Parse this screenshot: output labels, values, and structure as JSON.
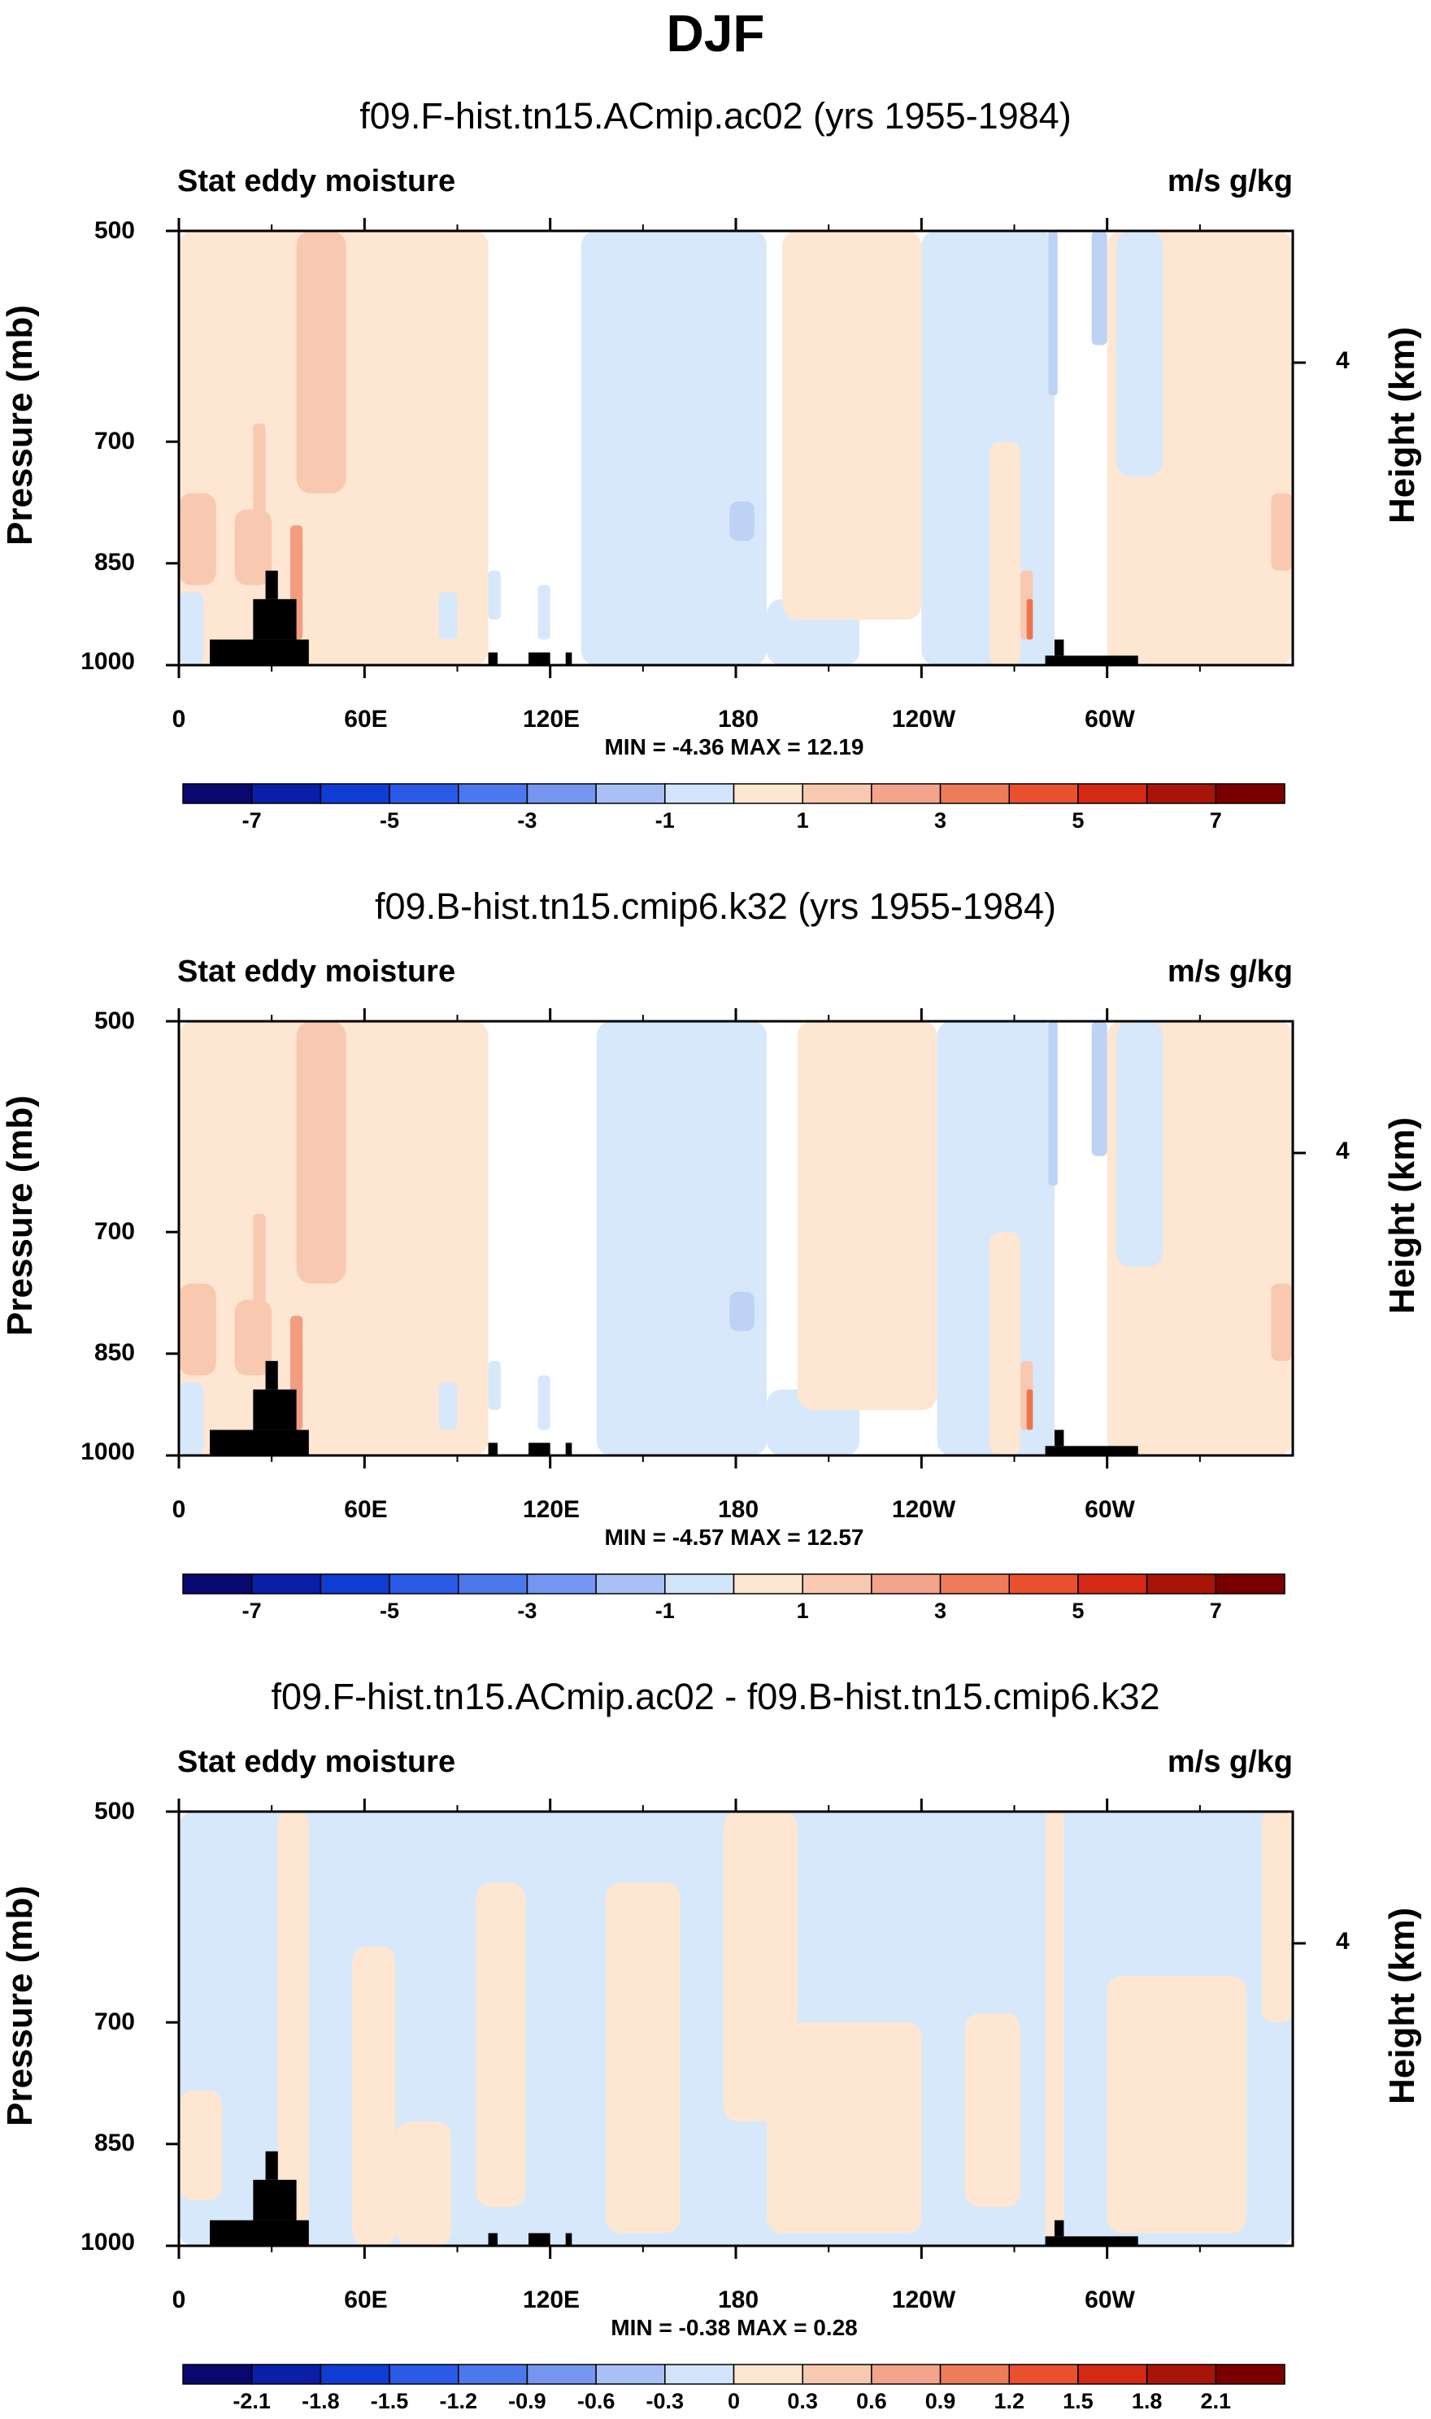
{
  "title": "DJF",
  "colors": {
    "neg4": "#1e3cdc",
    "neg3": "#4b6ee6",
    "neg2": "#8caaf0",
    "neg1": "#bed2f5",
    "neg0": "#d7e8fa",
    "pos0": "#fde6d2",
    "pos1": "#f8c8b0",
    "pos2": "#f39d80",
    "pos3": "#ee7450",
    "land": "#000000"
  },
  "chart_data": [
    {
      "type": "heatmap",
      "title": "f09.F-hist.tn15.ACmip.ac02 (yrs 1955-1984)",
      "left_string": "Stat eddy moisture",
      "right_string": "m/s g/kg",
      "ylabel": "Pressure (mb)",
      "y2label": "Height (km)",
      "x_ticks": [
        "0",
        "60E",
        "120E",
        "180",
        "120W",
        "60W"
      ],
      "x_tick_values": [
        0,
        60,
        120,
        180,
        240,
        300
      ],
      "xlim": [
        0,
        360
      ],
      "y_ticks": [
        "500",
        "700",
        "850",
        "1000"
      ],
      "y_tick_values": [
        500,
        700,
        850,
        1000
      ],
      "ylim": [
        1000,
        500
      ],
      "height_ticks": [
        "4"
      ],
      "min_max": "MIN = -4.36  MAX = 12.19",
      "colorbar_labels": [
        "-7",
        "-5",
        "-3",
        "-1",
        "1",
        "3",
        "5",
        "7"
      ],
      "colorbar_colors": [
        "#08086e",
        "#0a1ea8",
        "#0f3cd2",
        "#2a5ae6",
        "#4b78ec",
        "#7596f0",
        "#a8c0f5",
        "#d2e4fa",
        "#fde6d2",
        "#f8c8b0",
        "#f3a48a",
        "#ee7c5a",
        "#e8502e",
        "#d42a14",
        "#a81408",
        "#7a0000"
      ],
      "fields": [
        {
          "band": "pos0",
          "x": [
            0,
            100
          ],
          "p": [
            500,
            1000
          ]
        },
        {
          "band": "pos1",
          "x": [
            0,
            12
          ],
          "p": [
            760,
            880
          ]
        },
        {
          "band": "pos1",
          "x": [
            18,
            30
          ],
          "p": [
            780,
            880
          ]
        },
        {
          "band": "pos2",
          "x": [
            36,
            40
          ],
          "p": [
            800,
            960
          ]
        },
        {
          "band": "pos1",
          "x": [
            38,
            54
          ],
          "p": [
            500,
            760
          ]
        },
        {
          "band": "pos1",
          "x": [
            24,
            28
          ],
          "p": [
            680,
            860
          ]
        },
        {
          "band": "neg0",
          "x": [
            0,
            8
          ],
          "p": [
            890,
            1000
          ]
        },
        {
          "band": "neg0",
          "x": [
            84,
            90
          ],
          "p": [
            890,
            960
          ]
        },
        {
          "band": "neg0",
          "x": [
            100,
            104
          ],
          "p": [
            860,
            930
          ]
        },
        {
          "band": "neg0",
          "x": [
            116,
            120
          ],
          "p": [
            880,
            960
          ]
        },
        {
          "band": "neg0",
          "x": [
            130,
            190
          ],
          "p": [
            500,
            1000
          ]
        },
        {
          "band": "neg0",
          "x": [
            190,
            220
          ],
          "p": [
            900,
            1000
          ]
        },
        {
          "band": "neg1",
          "x": [
            178,
            186
          ],
          "p": [
            770,
            820
          ]
        },
        {
          "band": "pos0",
          "x": [
            195,
            240
          ],
          "p": [
            500,
            930
          ]
        },
        {
          "band": "neg0",
          "x": [
            240,
            283
          ],
          "p": [
            500,
            1000
          ]
        },
        {
          "band": "pos0",
          "x": [
            262,
            272
          ],
          "p": [
            700,
            1000
          ]
        },
        {
          "band": "pos1",
          "x": [
            272,
            276
          ],
          "p": [
            860,
            960
          ]
        },
        {
          "band": "pos3",
          "x": [
            274,
            276
          ],
          "p": [
            900,
            960
          ]
        },
        {
          "band": "neg1",
          "x": [
            295,
            300
          ],
          "p": [
            500,
            600
          ]
        },
        {
          "band": "neg1",
          "x": [
            281,
            284
          ],
          "p": [
            500,
            650
          ]
        },
        {
          "band": "pos0",
          "x": [
            300,
            360
          ],
          "p": [
            500,
            1000
          ]
        },
        {
          "band": "neg0",
          "x": [
            303,
            318
          ],
          "p": [
            500,
            740
          ]
        },
        {
          "band": "pos1",
          "x": [
            353,
            360
          ],
          "p": [
            760,
            860
          ]
        },
        {
          "band": "land",
          "x": [
            10,
            42
          ],
          "p": [
            960,
            1000
          ]
        },
        {
          "band": "land",
          "x": [
            24,
            38
          ],
          "p": [
            900,
            960
          ]
        },
        {
          "band": "land",
          "x": [
            28,
            32
          ],
          "p": [
            860,
            900
          ]
        },
        {
          "band": "land",
          "x": [
            100,
            103
          ],
          "p": [
            980,
            1000
          ]
        },
        {
          "band": "land",
          "x": [
            113,
            120
          ],
          "p": [
            980,
            1000
          ]
        },
        {
          "band": "land",
          "x": [
            125,
            127
          ],
          "p": [
            980,
            1000
          ]
        },
        {
          "band": "land",
          "x": [
            280,
            310
          ],
          "p": [
            985,
            1000
          ]
        },
        {
          "band": "land",
          "x": [
            283,
            286
          ],
          "p": [
            960,
            985
          ]
        }
      ]
    },
    {
      "type": "heatmap",
      "title": "f09.B-hist.tn15.cmip6.k32 (yrs 1955-1984)",
      "left_string": "Stat eddy moisture",
      "right_string": "m/s g/kg",
      "ylabel": "Pressure (mb)",
      "y2label": "Height (km)",
      "x_ticks": [
        "0",
        "60E",
        "120E",
        "180",
        "120W",
        "60W"
      ],
      "x_tick_values": [
        0,
        60,
        120,
        180,
        240,
        300
      ],
      "xlim": [
        0,
        360
      ],
      "y_ticks": [
        "500",
        "700",
        "850",
        "1000"
      ],
      "y_tick_values": [
        500,
        700,
        850,
        1000
      ],
      "ylim": [
        1000,
        500
      ],
      "height_ticks": [
        "4"
      ],
      "min_max": "MIN = -4.57  MAX = 12.57",
      "colorbar_labels": [
        "-7",
        "-5",
        "-3",
        "-1",
        "1",
        "3",
        "5",
        "7"
      ],
      "colorbar_colors": [
        "#08086e",
        "#0a1ea8",
        "#0f3cd2",
        "#2a5ae6",
        "#4b78ec",
        "#7596f0",
        "#a8c0f5",
        "#d2e4fa",
        "#fde6d2",
        "#f8c8b0",
        "#f3a48a",
        "#ee7c5a",
        "#e8502e",
        "#d42a14",
        "#a81408",
        "#7a0000"
      ],
      "fields": [
        {
          "band": "pos0",
          "x": [
            0,
            100
          ],
          "p": [
            500,
            1000
          ]
        },
        {
          "band": "pos1",
          "x": [
            0,
            12
          ],
          "p": [
            760,
            880
          ]
        },
        {
          "band": "pos1",
          "x": [
            18,
            30
          ],
          "p": [
            780,
            880
          ]
        },
        {
          "band": "pos2",
          "x": [
            36,
            40
          ],
          "p": [
            800,
            960
          ]
        },
        {
          "band": "pos1",
          "x": [
            38,
            54
          ],
          "p": [
            500,
            760
          ]
        },
        {
          "band": "pos1",
          "x": [
            24,
            28
          ],
          "p": [
            680,
            860
          ]
        },
        {
          "band": "neg0",
          "x": [
            0,
            8
          ],
          "p": [
            890,
            1000
          ]
        },
        {
          "band": "neg0",
          "x": [
            84,
            90
          ],
          "p": [
            890,
            960
          ]
        },
        {
          "band": "neg0",
          "x": [
            100,
            104
          ],
          "p": [
            860,
            930
          ]
        },
        {
          "band": "neg0",
          "x": [
            116,
            120
          ],
          "p": [
            880,
            960
          ]
        },
        {
          "band": "neg0",
          "x": [
            135,
            190
          ],
          "p": [
            500,
            1000
          ]
        },
        {
          "band": "neg0",
          "x": [
            190,
            220
          ],
          "p": [
            900,
            1000
          ]
        },
        {
          "band": "neg1",
          "x": [
            178,
            186
          ],
          "p": [
            770,
            820
          ]
        },
        {
          "band": "pos0",
          "x": [
            200,
            245
          ],
          "p": [
            500,
            930
          ]
        },
        {
          "band": "neg0",
          "x": [
            245,
            283
          ],
          "p": [
            500,
            1000
          ]
        },
        {
          "band": "pos0",
          "x": [
            262,
            272
          ],
          "p": [
            700,
            1000
          ]
        },
        {
          "band": "pos1",
          "x": [
            272,
            276
          ],
          "p": [
            860,
            960
          ]
        },
        {
          "band": "pos3",
          "x": [
            274,
            276
          ],
          "p": [
            900,
            960
          ]
        },
        {
          "band": "neg1",
          "x": [
            295,
            300
          ],
          "p": [
            500,
            620
          ]
        },
        {
          "band": "neg1",
          "x": [
            281,
            284
          ],
          "p": [
            500,
            650
          ]
        },
        {
          "band": "pos0",
          "x": [
            300,
            360
          ],
          "p": [
            500,
            1000
          ]
        },
        {
          "band": "neg0",
          "x": [
            303,
            318
          ],
          "p": [
            500,
            740
          ]
        },
        {
          "band": "pos1",
          "x": [
            353,
            360
          ],
          "p": [
            760,
            860
          ]
        },
        {
          "band": "land",
          "x": [
            10,
            42
          ],
          "p": [
            960,
            1000
          ]
        },
        {
          "band": "land",
          "x": [
            24,
            38
          ],
          "p": [
            900,
            960
          ]
        },
        {
          "band": "land",
          "x": [
            28,
            32
          ],
          "p": [
            860,
            900
          ]
        },
        {
          "band": "land",
          "x": [
            100,
            103
          ],
          "p": [
            980,
            1000
          ]
        },
        {
          "band": "land",
          "x": [
            113,
            120
          ],
          "p": [
            980,
            1000
          ]
        },
        {
          "band": "land",
          "x": [
            125,
            127
          ],
          "p": [
            980,
            1000
          ]
        },
        {
          "band": "land",
          "x": [
            280,
            310
          ],
          "p": [
            985,
            1000
          ]
        },
        {
          "band": "land",
          "x": [
            283,
            286
          ],
          "p": [
            960,
            985
          ]
        }
      ]
    },
    {
      "type": "heatmap",
      "title": "f09.F-hist.tn15.ACmip.ac02 - f09.B-hist.tn15.cmip6.k32",
      "left_string": "Stat eddy moisture",
      "right_string": "m/s g/kg",
      "ylabel": "Pressure (mb)",
      "y2label": "Height (km)",
      "x_ticks": [
        "0",
        "60E",
        "120E",
        "180",
        "120W",
        "60W"
      ],
      "x_tick_values": [
        0,
        60,
        120,
        180,
        240,
        300
      ],
      "xlim": [
        0,
        360
      ],
      "y_ticks": [
        "500",
        "700",
        "850",
        "1000"
      ],
      "y_tick_values": [
        500,
        700,
        850,
        1000
      ],
      "ylim": [
        1000,
        500
      ],
      "height_ticks": [
        "4"
      ],
      "min_max": "MIN = -0.38  MAX = 0.28",
      "colorbar_labels": [
        "-2.1",
        "-1.8",
        "-1.5",
        "-1.2",
        "-0.9",
        "-0.6",
        "-0.3",
        "0",
        "0.3",
        "0.6",
        "0.9",
        "1.2",
        "1.5",
        "1.8",
        "2.1"
      ],
      "colorbar_colors": [
        "#08086e",
        "#0a1ea8",
        "#0f3cd2",
        "#2a5ae6",
        "#4b78ec",
        "#7596f0",
        "#a8c0f5",
        "#d2e4fa",
        "#fde6d2",
        "#f8c8b0",
        "#f3a48a",
        "#ee7c5a",
        "#e8502e",
        "#d42a14",
        "#a81408",
        "#7a0000"
      ],
      "fields": [
        {
          "band": "neg0",
          "x": [
            0,
            360
          ],
          "p": [
            500,
            1000
          ]
        },
        {
          "band": "pos0",
          "x": [
            0,
            14
          ],
          "p": [
            780,
            930
          ]
        },
        {
          "band": "pos0",
          "x": [
            32,
            42
          ],
          "p": [
            500,
            1000
          ]
        },
        {
          "band": "pos0",
          "x": [
            56,
            70
          ],
          "p": [
            620,
            1000
          ]
        },
        {
          "band": "pos0",
          "x": [
            70,
            88
          ],
          "p": [
            820,
            1000
          ]
        },
        {
          "band": "pos0",
          "x": [
            96,
            112
          ],
          "p": [
            560,
            940
          ]
        },
        {
          "band": "pos0",
          "x": [
            138,
            162
          ],
          "p": [
            560,
            980
          ]
        },
        {
          "band": "pos0",
          "x": [
            176,
            200
          ],
          "p": [
            500,
            820
          ]
        },
        {
          "band": "pos0",
          "x": [
            190,
            240
          ],
          "p": [
            700,
            980
          ]
        },
        {
          "band": "pos0",
          "x": [
            254,
            272
          ],
          "p": [
            690,
            940
          ]
        },
        {
          "band": "pos0",
          "x": [
            280,
            286
          ],
          "p": [
            500,
            1000
          ]
        },
        {
          "band": "pos0",
          "x": [
            300,
            345
          ],
          "p": [
            650,
            980
          ]
        },
        {
          "band": "pos0",
          "x": [
            350,
            360
          ],
          "p": [
            500,
            700
          ]
        },
        {
          "band": "land",
          "x": [
            10,
            42
          ],
          "p": [
            960,
            1000
          ]
        },
        {
          "band": "land",
          "x": [
            24,
            38
          ],
          "p": [
            900,
            960
          ]
        },
        {
          "band": "land",
          "x": [
            28,
            32
          ],
          "p": [
            860,
            900
          ]
        },
        {
          "band": "land",
          "x": [
            100,
            103
          ],
          "p": [
            980,
            1000
          ]
        },
        {
          "band": "land",
          "x": [
            113,
            120
          ],
          "p": [
            980,
            1000
          ]
        },
        {
          "band": "land",
          "x": [
            125,
            127
          ],
          "p": [
            980,
            1000
          ]
        },
        {
          "band": "land",
          "x": [
            280,
            310
          ],
          "p": [
            985,
            1000
          ]
        },
        {
          "band": "land",
          "x": [
            283,
            286
          ],
          "p": [
            960,
            985
          ]
        }
      ]
    }
  ]
}
